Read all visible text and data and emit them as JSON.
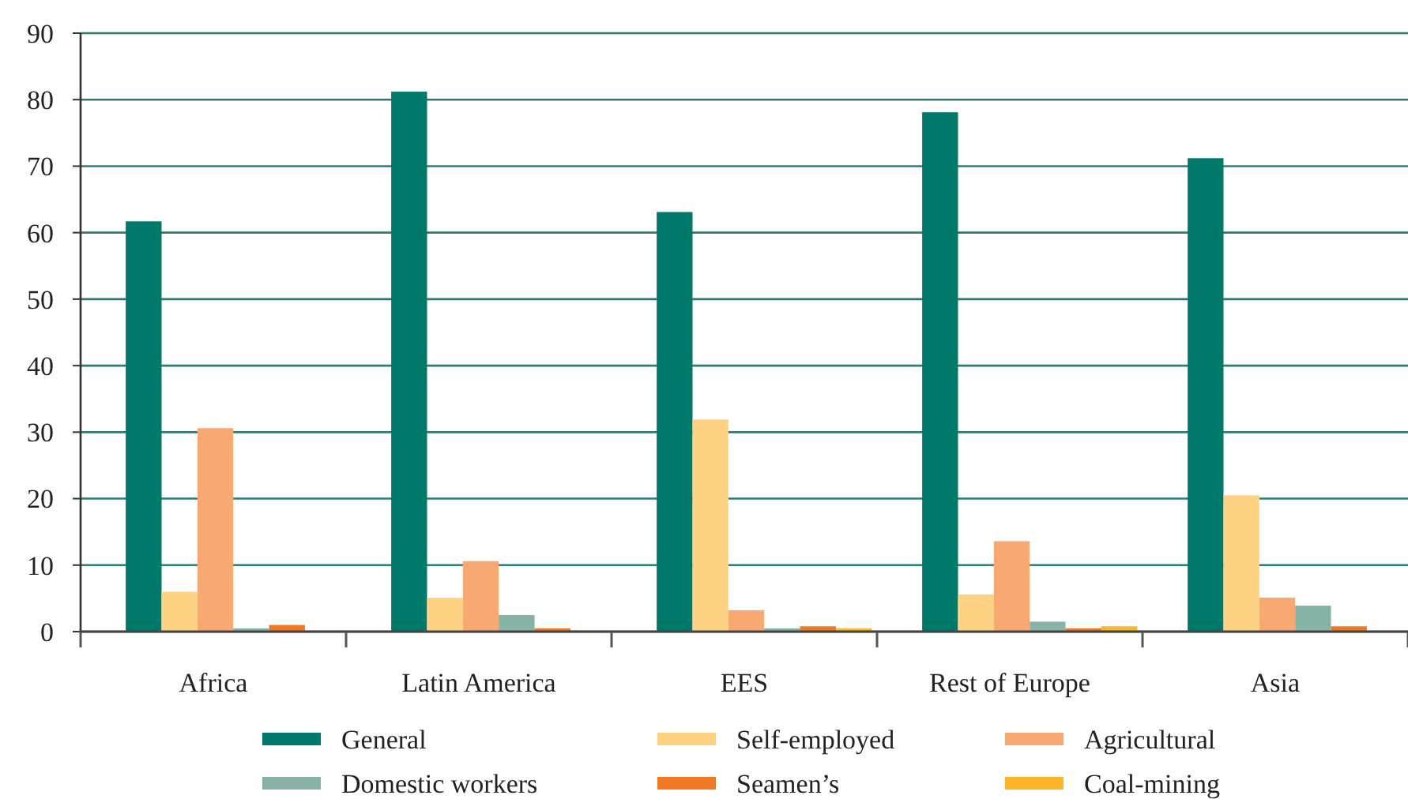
{
  "chart_data": {
    "type": "bar",
    "categories": [
      "Africa",
      "Latin America",
      "EES",
      "Rest of Europe",
      "Asia"
    ],
    "series": [
      {
        "name": "General",
        "color": "#00796b",
        "values": [
          61.7,
          81.2,
          63.1,
          78.1,
          71.2
        ]
      },
      {
        "name": "Self-employed",
        "color": "#fed283",
        "values": [
          6,
          5.1,
          31.9,
          5.6,
          20.5
        ]
      },
      {
        "name": "Agricultural",
        "color": "#f8a973",
        "values": [
          30.6,
          10.6,
          3.2,
          13.6,
          5.1
        ]
      },
      {
        "name": "Domestic workers",
        "color": "#86b2a8",
        "values": [
          0.5,
          2.5,
          0.5,
          1.5,
          3.9
        ]
      },
      {
        "name": "Seamen’s",
        "color": "#f07822",
        "values": [
          1,
          0.5,
          0.8,
          0.5,
          0.8
        ]
      },
      {
        "name": "Coal-mining",
        "color": "#fbb62a",
        "values": [
          0,
          0,
          0.5,
          0.8,
          0
        ]
      }
    ],
    "ylim": [
      0,
      90
    ],
    "yticks": [
      0,
      10,
      20,
      30,
      40,
      50,
      60,
      70,
      80,
      90
    ],
    "grid": "y",
    "legend": "bottom"
  }
}
